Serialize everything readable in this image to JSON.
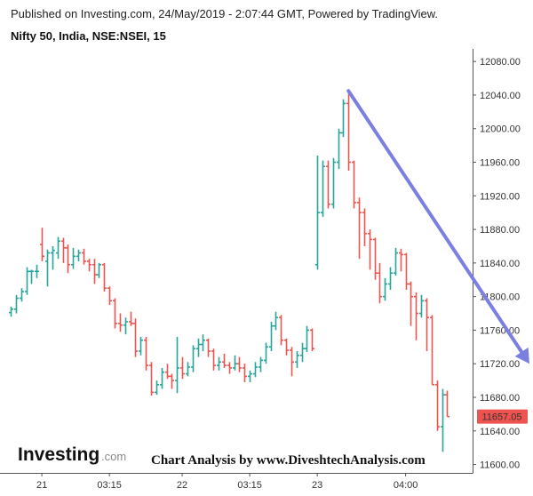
{
  "header": {
    "published": "Published on Investing.com, 24/May/2019 - 2:07:44 GMT, Powered by TradingView.",
    "subtitle": "Nifty 50, India, NSE:NSEI, 15"
  },
  "brand": {
    "logo_main": "Investing",
    "logo_suffix": ".com"
  },
  "credit": "Chart Analysis by www.DiveshtechAnalysis.com",
  "price_label": "11657.05",
  "colors": {
    "up": "#26a69a",
    "down": "#ef5350",
    "arrow": "#7b7fe0",
    "price_tag": "#ef5350",
    "axis": "#555555"
  },
  "chart_data": {
    "type": "ohlc-bar",
    "interval": "15",
    "x_tick_labels": [
      "21",
      "03:15",
      "22",
      "03:15",
      "23",
      "04:00"
    ],
    "y_ticks": [
      11600,
      11640,
      11680,
      11720,
      11760,
      11800,
      11840,
      11880,
      11920,
      11960,
      12000,
      12040,
      12080
    ],
    "y_tick_labels": [
      "11600.00",
      "11640.00",
      "11680.00",
      "11720.00",
      "11760.00",
      "11800.00",
      "11840.00",
      "11880.00",
      "11920.00",
      "11960.00",
      "12000.00",
      "12040.00",
      "12080.00"
    ],
    "ylim": [
      11590,
      12095
    ],
    "last_price": 11657.05,
    "bars": [
      {
        "o": 11781,
        "h": 11788,
        "l": 11776,
        "c": 11785
      },
      {
        "o": 11785,
        "h": 11802,
        "l": 11780,
        "c": 11798
      },
      {
        "o": 11798,
        "h": 11810,
        "l": 11794,
        "c": 11806
      },
      {
        "o": 11806,
        "h": 11835,
        "l": 11802,
        "c": 11830
      },
      {
        "o": 11830,
        "h": 11832,
        "l": 11815,
        "c": 11830
      },
      {
        "o": 11830,
        "h": 11838,
        "l": 11822,
        "c": 11830
      },
      {
        "o": 11862,
        "h": 11882,
        "l": 11842,
        "c": 11848
      },
      {
        "o": 11842,
        "h": 11856,
        "l": 11812,
        "c": 11852
      },
      {
        "o": 11852,
        "h": 11860,
        "l": 11832,
        "c": 11855
      },
      {
        "o": 11852,
        "h": 11871,
        "l": 11845,
        "c": 11866
      },
      {
        "o": 11866,
        "h": 11870,
        "l": 11840,
        "c": 11858
      },
      {
        "o": 11858,
        "h": 11862,
        "l": 11828,
        "c": 11838
      },
      {
        "o": 11838,
        "h": 11858,
        "l": 11833,
        "c": 11848
      },
      {
        "o": 11848,
        "h": 11856,
        "l": 11842,
        "c": 11852
      },
      {
        "o": 11852,
        "h": 11857,
        "l": 11838,
        "c": 11842
      },
      {
        "o": 11842,
        "h": 11845,
        "l": 11830,
        "c": 11838
      },
      {
        "o": 11838,
        "h": 11845,
        "l": 11815,
        "c": 11826
      },
      {
        "o": 11826,
        "h": 11840,
        "l": 11822,
        "c": 11838
      },
      {
        "o": 11838,
        "h": 11840,
        "l": 11806,
        "c": 11810
      },
      {
        "o": 11810,
        "h": 11812,
        "l": 11790,
        "c": 11795
      },
      {
        "o": 11795,
        "h": 11798,
        "l": 11762,
        "c": 11768
      },
      {
        "o": 11768,
        "h": 11780,
        "l": 11758,
        "c": 11766
      },
      {
        "o": 11766,
        "h": 11775,
        "l": 11755,
        "c": 11770
      },
      {
        "o": 11770,
        "h": 11782,
        "l": 11765,
        "c": 11768
      },
      {
        "o": 11768,
        "h": 11774,
        "l": 11728,
        "c": 11735
      },
      {
        "o": 11735,
        "h": 11752,
        "l": 11730,
        "c": 11748
      },
      {
        "o": 11748,
        "h": 11752,
        "l": 11712,
        "c": 11718
      },
      {
        "o": 11718,
        "h": 11722,
        "l": 11682,
        "c": 11686
      },
      {
        "o": 11686,
        "h": 11700,
        "l": 11683,
        "c": 11695
      },
      {
        "o": 11695,
        "h": 11715,
        "l": 11690,
        "c": 11710
      },
      {
        "o": 11710,
        "h": 11720,
        "l": 11702,
        "c": 11705
      },
      {
        "o": 11705,
        "h": 11708,
        "l": 11690,
        "c": 11700
      },
      {
        "o": 11700,
        "h": 11752,
        "l": 11685,
        "c": 11715
      },
      {
        "o": 11715,
        "h": 11728,
        "l": 11702,
        "c": 11708
      },
      {
        "o": 11708,
        "h": 11722,
        "l": 11705,
        "c": 11716
      },
      {
        "o": 11716,
        "h": 11742,
        "l": 11710,
        "c": 11738
      },
      {
        "o": 11738,
        "h": 11750,
        "l": 11728,
        "c": 11743
      },
      {
        "o": 11743,
        "h": 11755,
        "l": 11735,
        "c": 11748
      },
      {
        "o": 11748,
        "h": 11750,
        "l": 11728,
        "c": 11735
      },
      {
        "o": 11735,
        "h": 11738,
        "l": 11712,
        "c": 11718
      },
      {
        "o": 11718,
        "h": 11728,
        "l": 11712,
        "c": 11722
      },
      {
        "o": 11722,
        "h": 11732,
        "l": 11715,
        "c": 11718
      },
      {
        "o": 11718,
        "h": 11722,
        "l": 11708,
        "c": 11715
      },
      {
        "o": 11715,
        "h": 11730,
        "l": 11712,
        "c": 11720
      },
      {
        "o": 11720,
        "h": 11728,
        "l": 11710,
        "c": 11715
      },
      {
        "o": 11715,
        "h": 11720,
        "l": 11698,
        "c": 11705
      },
      {
        "o": 11705,
        "h": 11712,
        "l": 11698,
        "c": 11708
      },
      {
        "o": 11708,
        "h": 11722,
        "l": 11704,
        "c": 11716
      },
      {
        "o": 11716,
        "h": 11728,
        "l": 11710,
        "c": 11724
      },
      {
        "o": 11724,
        "h": 11745,
        "l": 11720,
        "c": 11740
      },
      {
        "o": 11740,
        "h": 11770,
        "l": 11735,
        "c": 11765
      },
      {
        "o": 11765,
        "h": 11782,
        "l": 11760,
        "c": 11775
      },
      {
        "o": 11775,
        "h": 11778,
        "l": 11742,
        "c": 11748
      },
      {
        "o": 11748,
        "h": 11750,
        "l": 11730,
        "c": 11736
      },
      {
        "o": 11736,
        "h": 11740,
        "l": 11705,
        "c": 11722
      },
      {
        "o": 11722,
        "h": 11735,
        "l": 11715,
        "c": 11730
      },
      {
        "o": 11730,
        "h": 11745,
        "l": 11722,
        "c": 11738
      },
      {
        "o": 11738,
        "h": 11765,
        "l": 11734,
        "c": 11760
      },
      {
        "o": 11760,
        "h": 11762,
        "l": 11735,
        "c": 11738
      },
      {
        "o": 11838,
        "h": 11968,
        "l": 11832,
        "c": 11900
      },
      {
        "o": 11900,
        "h": 11962,
        "l": 11895,
        "c": 11955
      },
      {
        "o": 11955,
        "h": 11962,
        "l": 11905,
        "c": 11910
      },
      {
        "o": 11910,
        "h": 11965,
        "l": 11905,
        "c": 11960
      },
      {
        "o": 11960,
        "h": 12000,
        "l": 11952,
        "c": 11995
      },
      {
        "o": 11995,
        "h": 12035,
        "l": 11990,
        "c": 12030
      },
      {
        "o": 12030,
        "h": 12045,
        "l": 11950,
        "c": 11960
      },
      {
        "o": 11960,
        "h": 11962,
        "l": 11905,
        "c": 11912
      },
      {
        "o": 11912,
        "h": 11918,
        "l": 11845,
        "c": 11900
      },
      {
        "o": 11900,
        "h": 11905,
        "l": 11860,
        "c": 11875
      },
      {
        "o": 11875,
        "h": 11880,
        "l": 11832,
        "c": 11868
      },
      {
        "o": 11868,
        "h": 11870,
        "l": 11820,
        "c": 11828
      },
      {
        "o": 11828,
        "h": 11840,
        "l": 11792,
        "c": 11800
      },
      {
        "o": 11800,
        "h": 11822,
        "l": 11795,
        "c": 11815
      },
      {
        "o": 11815,
        "h": 11835,
        "l": 11808,
        "c": 11828
      },
      {
        "o": 11828,
        "h": 11858,
        "l": 11825,
        "c": 11852
      },
      {
        "o": 11852,
        "h": 11857,
        "l": 11830,
        "c": 11850
      },
      {
        "o": 11850,
        "h": 11852,
        "l": 11808,
        "c": 11815
      },
      {
        "o": 11815,
        "h": 11818,
        "l": 11765,
        "c": 11800
      },
      {
        "o": 11800,
        "h": 11805,
        "l": 11748,
        "c": 11780
      },
      {
        "o": 11780,
        "h": 11802,
        "l": 11775,
        "c": 11795
      },
      {
        "o": 11795,
        "h": 11798,
        "l": 11735,
        "c": 11775
      },
      {
        "o": 11775,
        "h": 11778,
        "l": 11695,
        "c": 11695
      },
      {
        "o": 11695,
        "h": 11700,
        "l": 11640,
        "c": 11645
      },
      {
        "o": 11645,
        "h": 11690,
        "l": 11615,
        "c": 11683
      },
      {
        "o": 11683,
        "h": 11688,
        "l": 11657,
        "c": 11657
      }
    ]
  }
}
